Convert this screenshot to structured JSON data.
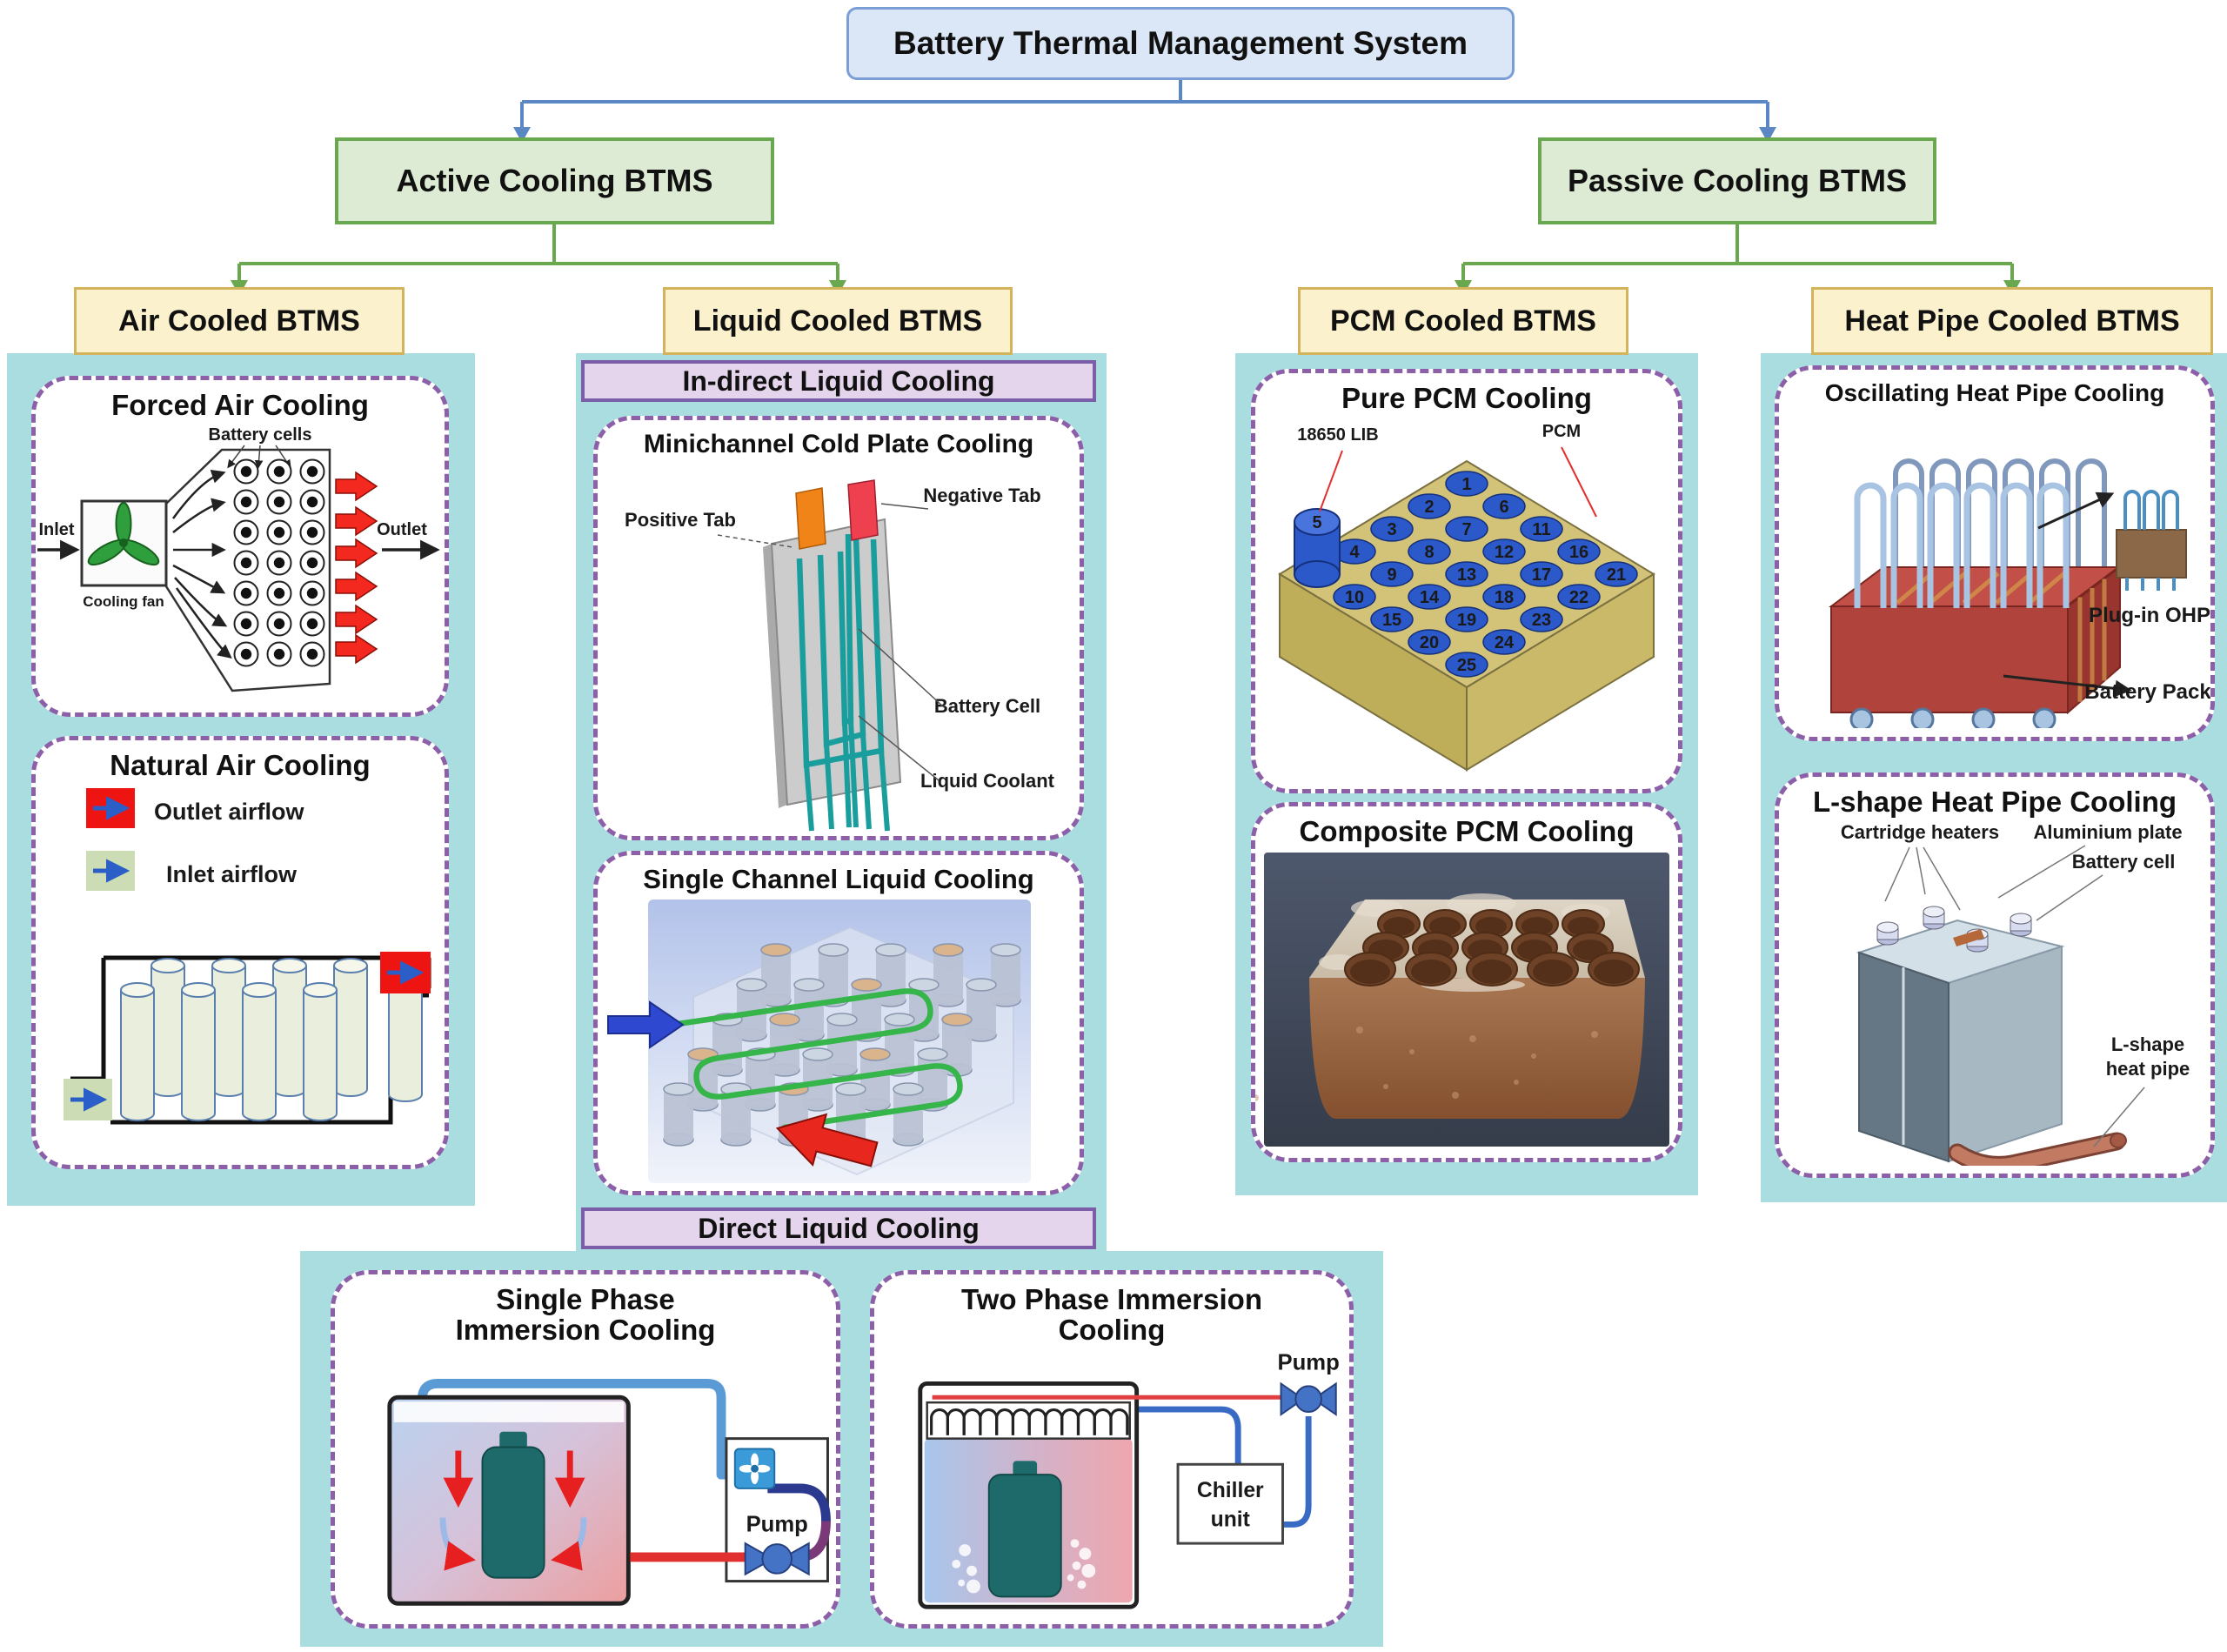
{
  "figure_title": "Battery Thermal Management System",
  "tree": {
    "active": "Active Cooling BTMS",
    "passive": "Passive Cooling BTMS",
    "air": "Air Cooled BTMS",
    "liquid": "Liquid Cooled BTMS",
    "pcm": "PCM Cooled BTMS",
    "heat_pipe": "Heat Pipe Cooled BTMS"
  },
  "liquid_sections": {
    "indirect": "In-direct Liquid Cooling",
    "direct": "Direct Liquid Cooling"
  },
  "forced_air": {
    "title": "Forced Air Cooling",
    "battery_cells": "Battery cells",
    "inlet": "Inlet",
    "outlet": "Outlet",
    "cooling_fan": "Cooling fan"
  },
  "natural_air": {
    "title": "Natural Air Cooling",
    "outlet_airflow": "Outlet airflow",
    "inlet_airflow": "Inlet airflow"
  },
  "minichannel": {
    "title": "Minichannel Cold Plate Cooling",
    "positive_tab": "Positive Tab",
    "negative_tab": "Negative Tab",
    "battery_cell": "Battery Cell",
    "liquid_coolant": "Liquid Coolant"
  },
  "single_channel": {
    "title": "Single Channel Liquid Cooling"
  },
  "pure_pcm": {
    "title": "Pure PCM Cooling",
    "lib_label": "18650 LIB",
    "pcm_label": "PCM",
    "cell_numbers": [
      "1",
      "2",
      "3",
      "4",
      "5",
      "6",
      "7",
      "8",
      "9",
      "10",
      "11",
      "12",
      "13",
      "14",
      "15",
      "16",
      "17",
      "18",
      "19",
      "20",
      "21",
      "22",
      "23",
      "24",
      "25"
    ]
  },
  "composite_pcm": {
    "title": "Composite PCM Cooling"
  },
  "oscillating_hp": {
    "title": "Oscillating Heat Pipe Cooling",
    "plug_in": "Plug-in OHP",
    "battery_pack": "Battery Pack"
  },
  "l_shape_hp": {
    "title": "L-shape Heat Pipe Cooling",
    "cartridge": "Cartridge heaters",
    "aluminium": "Aluminium plate",
    "battery_cell": "Battery cell",
    "pipe_line1": "L-shape",
    "pipe_line2": "heat pipe"
  },
  "single_phase": {
    "title_line1": "Single Phase",
    "title_line2": "Immersion Cooling",
    "pump": "Pump"
  },
  "two_phase": {
    "title_line1": "Two Phase Immersion",
    "title_line2": "Cooling",
    "pump": "Pump",
    "chiller_line1": "Chiller",
    "chiller_line2": "unit"
  },
  "colors": {
    "panel_teal": "#aadde0",
    "node_blue_fill": "#dbe7f6",
    "node_green_fill": "#ddebd4",
    "node_yellow_fill": "#fcf1cd",
    "section_lavender": "#e4d5ec",
    "dashed_border_purple": "#8d5fa8",
    "connector_blue": "#5b87c5",
    "connector_green": "#6aa84f",
    "outlet_red": "#ee1411",
    "inlet_green": "#ccdcb4"
  }
}
